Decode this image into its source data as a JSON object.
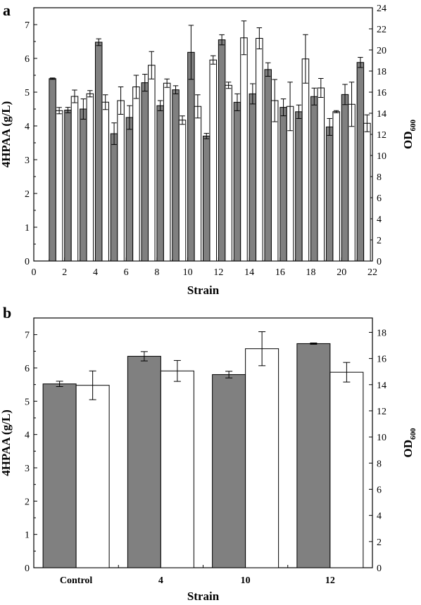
{
  "chart_data": [
    {
      "panel_label": "a",
      "type": "bar",
      "xlabel": "Strain",
      "ylabel_left": "4HPAA (g/L)",
      "ylabel_right_main": "OD",
      "ylabel_right_sub": "600",
      "xlim": [
        0,
        22
      ],
      "ylim_left": [
        0,
        7.5
      ],
      "ylim_right": [
        0,
        24
      ],
      "x_ticks": [
        0,
        2,
        4,
        6,
        8,
        10,
        12,
        14,
        16,
        18,
        20,
        22
      ],
      "y_left_ticks": [
        0,
        1,
        2,
        3,
        4,
        5,
        6,
        7
      ],
      "y_right_ticks": [
        0,
        2,
        4,
        6,
        8,
        10,
        12,
        14,
        16,
        18,
        20,
        22,
        24
      ],
      "categories": [
        1,
        2,
        3,
        4,
        5,
        6,
        7,
        8,
        9,
        10,
        11,
        12,
        13,
        14,
        15,
        16,
        17,
        18,
        19,
        20,
        21
      ],
      "series": [
        {
          "name": "",
          "axis": "left",
          "color": "#808080",
          "values": [
            5.4,
            4.47,
            4.5,
            6.48,
            3.77,
            4.25,
            5.28,
            4.6,
            5.07,
            6.18,
            3.7,
            6.55,
            4.7,
            4.95,
            5.67,
            4.55,
            4.42,
            4.87,
            3.97,
            4.93,
            5.88
          ],
          "errors": [
            0.02,
            0.08,
            0.3,
            0.1,
            0.32,
            0.35,
            0.25,
            0.15,
            0.12,
            0.8,
            0.08,
            0.15,
            0.25,
            0.3,
            0.2,
            0.25,
            0.2,
            0.25,
            0.25,
            0.3,
            0.15
          ]
        },
        {
          "name": "",
          "axis": "right",
          "color": "#ffffff",
          "values": [
            14.25,
            15.6,
            15.85,
            15.05,
            15.2,
            16.5,
            18.55,
            16.85,
            13.35,
            14.65,
            19.05,
            16.65,
            21.15,
            21.1,
            15.2,
            14.65,
            19.15,
            16.4,
            14.15,
            14.85,
            13.05
          ],
          "errors": [
            0.3,
            0.6,
            0.3,
            0.7,
            1.3,
            1.1,
            1.3,
            0.4,
            0.4,
            1.1,
            0.4,
            0.3,
            1.6,
            1.0,
            2.0,
            2.3,
            2.3,
            0.9,
            0.1,
            2.1,
            0.8
          ]
        }
      ]
    },
    {
      "panel_label": "b",
      "type": "bar",
      "xlabel": "Strain",
      "ylabel_left": "4HPAA (g/L)",
      "ylabel_right_main": "OD",
      "ylabel_right_sub": "600",
      "ylim_left": [
        0,
        7.5
      ],
      "ylim_right": [
        0,
        19.1
      ],
      "y_left_ticks": [
        0,
        1,
        2,
        3,
        4,
        5,
        6,
        7
      ],
      "y_right_ticks": [
        0,
        2,
        4,
        6,
        8,
        10,
        12,
        14,
        16,
        18
      ],
      "categories": [
        "Control",
        "4",
        "10",
        "12"
      ],
      "series": [
        {
          "name": "",
          "axis": "left",
          "color": "#808080",
          "values": [
            5.52,
            6.35,
            5.8,
            6.73
          ],
          "errors": [
            0.08,
            0.14,
            0.1,
            0.02
          ]
        },
        {
          "name": "",
          "axis": "right",
          "color": "#ffffff",
          "values": [
            13.95,
            15.05,
            16.75,
            14.95
          ],
          "errors": [
            1.1,
            0.8,
            1.3,
            0.75
          ]
        }
      ]
    }
  ]
}
